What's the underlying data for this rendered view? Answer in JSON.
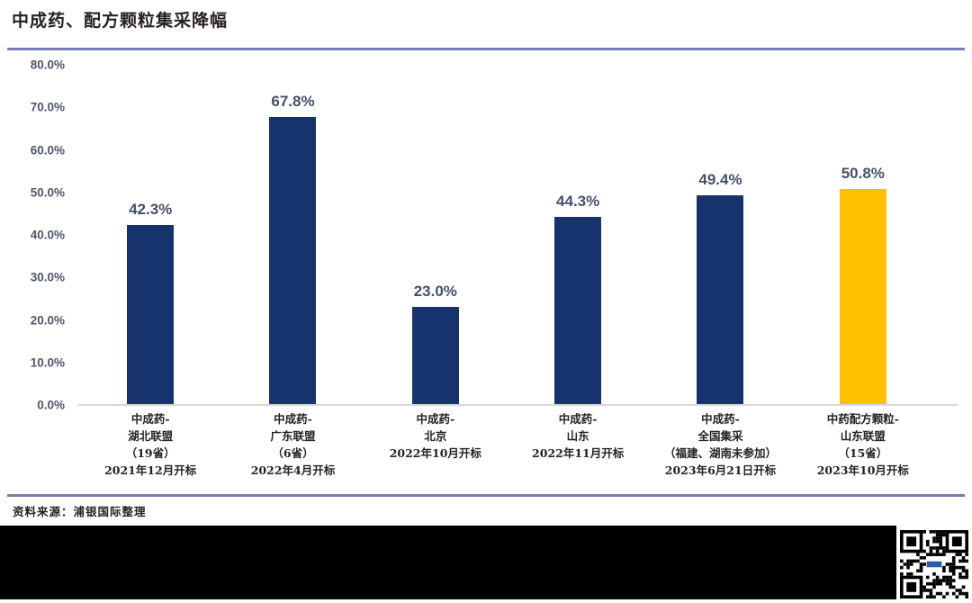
{
  "header": {
    "title": "中成药、配方颗粒集采降幅"
  },
  "chart_data": {
    "type": "bar",
    "title": "中成药、配方颗粒集采降幅",
    "categories": [
      "中成药-\n湖北联盟\n（19省）\n2021年12月开标",
      "中成药-\n广东联盟\n（6省）\n2022年4月开标",
      "中成药-\n北京\n2022年10月开标",
      "中成药-\n山东\n2022年11月开标",
      "中成药-\n全国集采\n（福建、湖南未参加）\n2023年6月21日开标",
      "中药配方颗粒-\n山东联盟\n（15省）\n2023年10月开标"
    ],
    "values": [
      42.3,
      67.8,
      23.0,
      44.3,
      49.4,
      50.8
    ],
    "value_labels": [
      "42.3%",
      "67.8%",
      "23.0%",
      "44.3%",
      "49.4%",
      "50.8%"
    ],
    "bar_colors": [
      "#17336E",
      "#17336E",
      "#17336E",
      "#17336E",
      "#17336E",
      "#FFC000"
    ],
    "ylim": [
      0,
      80
    ],
    "ytick_labels": [
      "0.0%",
      "10.0%",
      "20.0%",
      "30.0%",
      "40.0%",
      "50.0%",
      "60.0%",
      "70.0%",
      "80.0%"
    ],
    "xlabel": "",
    "ylabel": "",
    "grid": false,
    "legend": null
  },
  "footer": {
    "source": "资料来源：浦银国际整理"
  },
  "colors": {
    "bar_navy": "#17336E",
    "bar_yellow": "#FFC000",
    "rule_purple": "#7C7CB5",
    "axis_line": "#D9D9D9",
    "value_label": "#44506B",
    "ytick_label": "#4E5668",
    "title_text": "#262220",
    "bottom_bar": "#000000",
    "qr_logo": "#2A5CAA"
  },
  "qr": {
    "name": "qr-code"
  }
}
